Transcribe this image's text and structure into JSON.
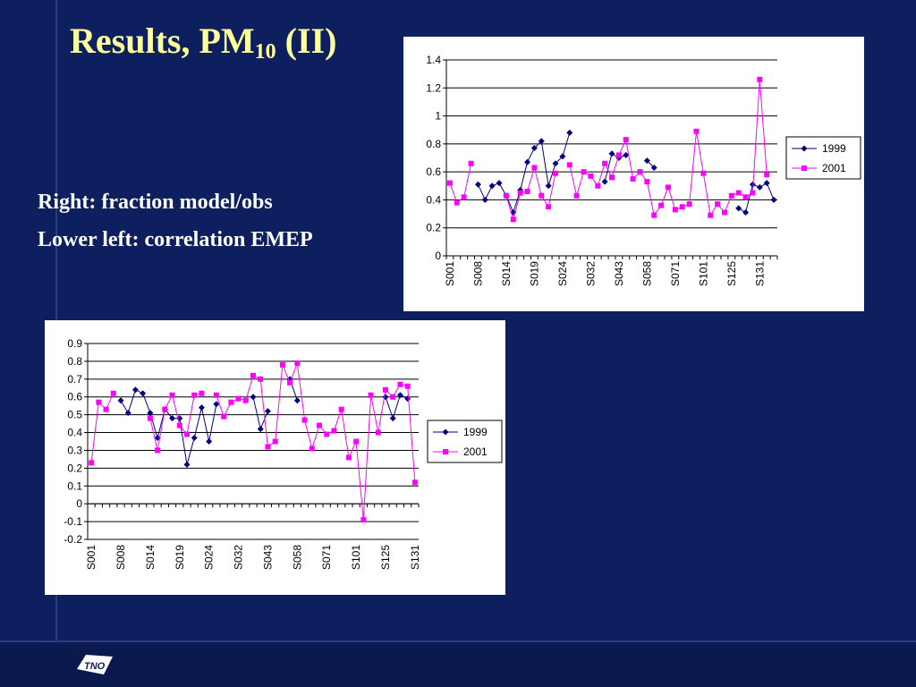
{
  "slide": {
    "title_main": "Results, PM",
    "title_sub": "10",
    "title_tail": " (II)",
    "note_right": "Right: fraction model/obs",
    "note_lower_left": "Lower left: correlation EMEP",
    "logo_text": "TNO"
  },
  "colors": {
    "background": "#0d1f5e",
    "title": "#ffff99",
    "series_1999": "#000080",
    "series_2001": "#ff00ff"
  },
  "chart_data": [
    {
      "type": "line",
      "title": "",
      "xlabel": "",
      "ylabel": "",
      "ylim": [
        0,
        1.4
      ],
      "yticks": [
        0,
        0.2,
        0.4,
        0.6,
        0.8,
        1,
        1.2,
        1.4
      ],
      "tick_labels": [
        "S001",
        "S008",
        "S014",
        "S019",
        "S024",
        "S032",
        "S043",
        "S058",
        "S071",
        "S101",
        "S125",
        "S131"
      ],
      "tick_indices": [
        0,
        4,
        8,
        12,
        16,
        20,
        24,
        28,
        32,
        36,
        40,
        44
      ],
      "n_points": 47,
      "grid": true,
      "legend": "right",
      "series": [
        {
          "name": "1999",
          "marker": "diamond",
          "color": "#000080",
          "values": [
            null,
            null,
            null,
            null,
            0.51,
            0.4,
            0.5,
            0.52,
            0.43,
            0.31,
            0.47,
            0.67,
            0.77,
            0.82,
            0.5,
            0.66,
            0.71,
            0.88,
            null,
            null,
            null,
            null,
            0.53,
            0.73,
            0.7,
            0.72,
            null,
            null,
            0.68,
            0.63,
            null,
            null,
            null,
            null,
            null,
            null,
            null,
            null,
            null,
            null,
            null,
            0.34,
            0.31,
            0.51,
            0.49,
            0.52,
            0.4
          ]
        },
        {
          "name": "2001",
          "marker": "square",
          "color": "#ff00ff",
          "values": [
            0.52,
            0.38,
            0.42,
            0.66,
            null,
            null,
            null,
            null,
            0.43,
            0.26,
            0.45,
            0.46,
            0.63,
            0.43,
            0.35,
            0.59,
            null,
            0.65,
            0.43,
            0.6,
            0.57,
            0.5,
            0.66,
            0.56,
            0.72,
            0.83,
            0.55,
            0.6,
            0.53,
            0.29,
            0.36,
            0.49,
            0.33,
            0.35,
            0.37,
            0.89,
            0.59,
            0.29,
            0.37,
            0.31,
            0.43,
            0.45,
            0.42,
            0.45,
            1.26,
            0.58,
            null
          ]
        }
      ]
    },
    {
      "type": "line",
      "title": "",
      "xlabel": "",
      "ylabel": "",
      "ylim": [
        -0.2,
        0.9
      ],
      "yticks": [
        -0.2,
        -0.1,
        0,
        0.1,
        0.2,
        0.3,
        0.4,
        0.5,
        0.6,
        0.7,
        0.8,
        0.9
      ],
      "tick_labels": [
        "S001",
        "S008",
        "S014",
        "S019",
        "S024",
        "S032",
        "S043",
        "S058",
        "S071",
        "S101",
        "S125",
        "S131"
      ],
      "tick_indices": [
        0,
        4,
        8,
        12,
        16,
        20,
        24,
        28,
        32,
        36,
        40,
        44
      ],
      "n_points": 45,
      "grid": true,
      "legend": "right",
      "series": [
        {
          "name": "1999",
          "marker": "diamond",
          "color": "#000080",
          "values": [
            null,
            null,
            null,
            null,
            0.58,
            0.51,
            0.64,
            0.62,
            0.51,
            0.37,
            0.53,
            0.48,
            0.48,
            0.22,
            0.37,
            0.54,
            0.35,
            0.56,
            null,
            null,
            null,
            null,
            0.6,
            0.42,
            0.52,
            null,
            null,
            0.7,
            0.58,
            null,
            null,
            null,
            null,
            null,
            null,
            null,
            null,
            null,
            null,
            null,
            0.6,
            0.48,
            0.61,
            0.59,
            null
          ]
        },
        {
          "name": "2001",
          "marker": "square",
          "color": "#ff00ff",
          "values": [
            0.23,
            0.57,
            0.53,
            0.62,
            null,
            null,
            null,
            null,
            0.48,
            0.3,
            0.53,
            0.61,
            0.44,
            0.39,
            0.61,
            0.62,
            null,
            0.61,
            0.49,
            0.57,
            0.59,
            0.58,
            0.72,
            0.7,
            0.32,
            0.35,
            0.78,
            0.68,
            0.79,
            0.47,
            0.31,
            0.44,
            0.39,
            0.41,
            0.53,
            0.26,
            0.35,
            -0.09,
            0.61,
            0.4,
            0.64,
            0.6,
            0.67,
            0.66,
            0.12
          ]
        }
      ]
    }
  ]
}
